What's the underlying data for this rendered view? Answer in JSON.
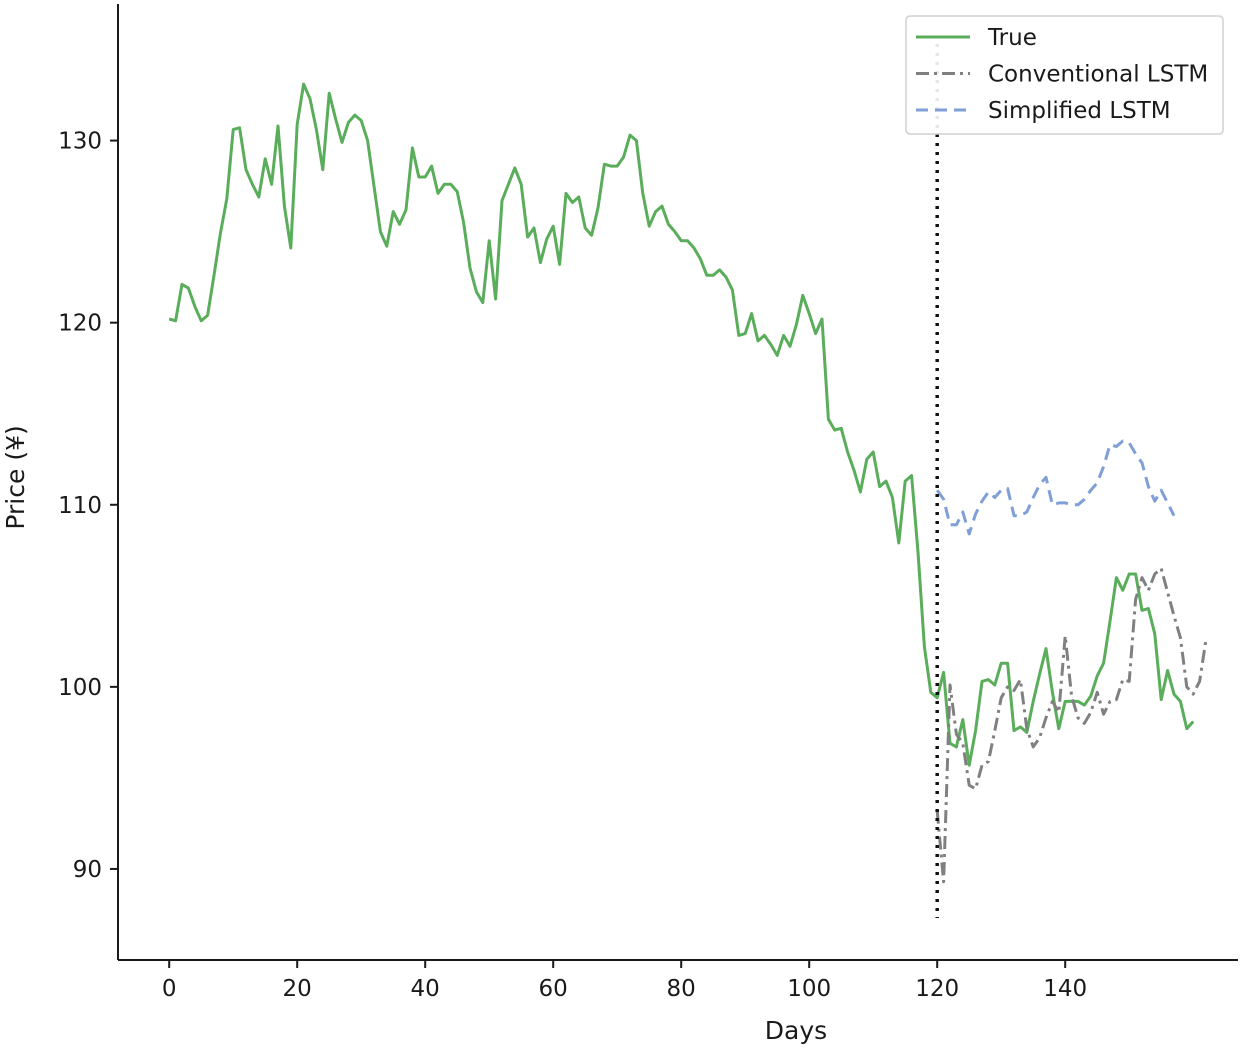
{
  "chart_data": {
    "type": "line",
    "xlabel": "Days",
    "ylabel": "Price (¥)",
    "xlim": [
      -8,
      167
    ],
    "ylim": [
      85,
      137.5
    ],
    "x_ticks": [
      0,
      20,
      40,
      60,
      80,
      100,
      120,
      140
    ],
    "y_ticks": [
      90,
      100,
      110,
      120,
      130
    ],
    "grid": false,
    "legend_position": "top-right",
    "vertical_marker_x": 120,
    "series": [
      {
        "name": "True",
        "color": "#5aad5a",
        "style": "solid",
        "x_start": 0,
        "values": [
          120.2,
          120.1,
          122.1,
          121.9,
          120.9,
          120.1,
          120.4,
          122.6,
          124.9,
          126.8,
          130.6,
          130.7,
          128.4,
          127.6,
          126.9,
          129.0,
          127.6,
          130.8,
          126.4,
          124.1,
          130.9,
          133.1,
          132.3,
          130.6,
          128.4,
          132.6,
          131.2,
          129.9,
          131.0,
          131.4,
          131.1,
          130.0,
          127.5,
          125.0,
          124.2,
          126.1,
          125.4,
          126.2,
          129.6,
          128.0,
          128.0,
          128.6,
          127.1,
          127.6,
          127.6,
          127.2,
          125.5,
          123.0,
          121.7,
          121.1,
          124.5,
          121.3,
          126.7,
          127.6,
          128.5,
          127.6,
          124.7,
          125.2,
          123.3,
          124.6,
          125.3,
          123.2,
          127.1,
          126.6,
          126.9,
          125.2,
          124.8,
          126.3,
          128.7,
          128.6,
          128.6,
          129.1,
          130.3,
          130.0,
          127.1,
          125.3,
          126.1,
          126.4,
          125.4,
          125.0,
          124.5,
          124.5,
          124.1,
          123.5,
          122.6,
          122.6,
          122.9,
          122.5,
          121.8,
          119.3,
          119.4,
          120.5,
          119.0,
          119.3,
          118.8,
          118.2,
          119.3,
          118.7,
          119.9,
          121.5,
          120.5,
          119.4,
          120.2,
          114.7,
          114.1,
          114.2,
          112.9,
          111.9,
          110.7,
          112.5,
          112.9,
          111.0,
          111.3,
          110.4,
          107.9,
          111.3,
          111.6,
          107.4,
          102.2,
          99.7,
          99.4,
          100.8,
          96.9,
          96.7,
          98.2,
          95.7,
          97.6,
          100.3,
          100.4,
          100.1,
          101.3,
          101.3,
          97.6,
          97.8,
          97.5,
          99.2,
          100.7,
          102.1,
          99.7,
          97.7,
          99.2,
          99.2,
          99.2,
          99.0,
          99.5,
          100.6,
          101.3,
          103.6,
          106.0,
          105.3,
          106.2,
          106.2,
          104.2,
          104.3,
          102.9,
          99.3,
          100.9,
          99.6,
          99.2,
          97.7,
          98.1
        ]
      },
      {
        "name": "Conventional LSTM",
        "color": "#808080",
        "style": "dashdot",
        "x_start": 120,
        "values": [
          93.2,
          89.3,
          100.1,
          97.4,
          96.9,
          94.6,
          94.4,
          95.7,
          95.9,
          97.6,
          99.4,
          100.0,
          99.8,
          100.4,
          97.7,
          96.7,
          97.2,
          98.3,
          99.2,
          98.6,
          102.8,
          99.5,
          98.3,
          98.0,
          98.6,
          99.7,
          98.5,
          99.2,
          99.3,
          100.4,
          100.3,
          104.8,
          106.0,
          105.3,
          106.2,
          106.5,
          105.2,
          103.9,
          102.7,
          100.0,
          99.6,
          100.3,
          102.6
        ]
      },
      {
        "name": "Simplified LSTM",
        "color": "#7f9fd6",
        "style": "dashed",
        "x_start": 120,
        "values": [
          110.8,
          110.3,
          108.9,
          108.9,
          109.6,
          108.4,
          109.5,
          110.2,
          110.7,
          110.4,
          110.8,
          110.9,
          109.4,
          109.4,
          109.6,
          110.4,
          111.1,
          111.5,
          110.0,
          110.1,
          110.1,
          110.0,
          110.0,
          110.3,
          110.8,
          111.2,
          112.1,
          113.3,
          113.2,
          113.5,
          113.4,
          112.8,
          112.3,
          111.0,
          110.2,
          110.8,
          110.1,
          109.4
        ]
      }
    ]
  }
}
